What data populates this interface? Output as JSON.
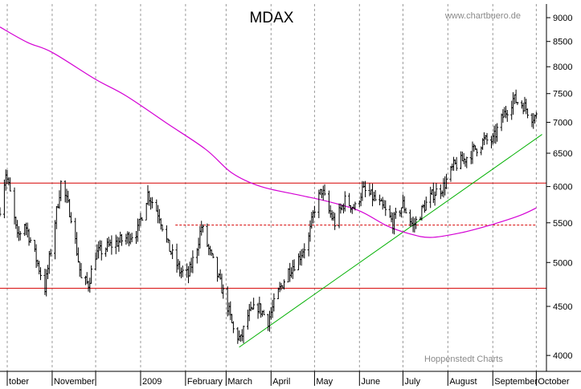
{
  "chart_data": {
    "type": "ohlc",
    "title": "MDAX",
    "source_top": "www.chartbuero.de",
    "source_bottom": "Hoppenstedt Charts",
    "xlabel": "",
    "ylabel": "",
    "y_scale": "log",
    "ylim": [
      3850,
      9300
    ],
    "y_ticks": [
      "4000",
      "4500",
      "5000",
      "5500",
      "6000",
      "6500",
      "7000",
      "7500",
      "8000",
      "8500",
      "9000"
    ],
    "x_range": [
      "2008-09-26",
      "2009-10-08"
    ],
    "x_ticks": [
      {
        "date": "2008-10-01",
        "label": "tober"
      },
      {
        "date": "2008-11-01",
        "label": "November"
      },
      {
        "date": "2008-12-01",
        "label": ""
      },
      {
        "date": "2009-01-01",
        "label": "2009"
      },
      {
        "date": "2009-02-01",
        "label": "February"
      },
      {
        "date": "2009-03-01",
        "label": "March"
      },
      {
        "date": "2009-04-01",
        "label": "April"
      },
      {
        "date": "2009-05-01",
        "label": "May"
      },
      {
        "date": "2009-06-01",
        "label": "June"
      },
      {
        "date": "2009-07-01",
        "label": "July"
      },
      {
        "date": "2009-08-01",
        "label": "August"
      },
      {
        "date": "2009-09-01",
        "label": "September"
      },
      {
        "date": "2009-10-01",
        "label": "October"
      }
    ],
    "grid": "vertical-dashed",
    "price_path": [
      [
        "2008-09-26",
        5700
      ],
      [
        "2008-09-30",
        6200
      ],
      [
        "2008-10-03",
        5900
      ],
      [
        "2008-10-08",
        5300
      ],
      [
        "2008-10-13",
        5500
      ],
      [
        "2008-10-20",
        5100
      ],
      [
        "2008-10-27",
        4700
      ],
      [
        "2008-10-31",
        5150
      ],
      [
        "2008-11-04",
        5650
      ],
      [
        "2008-11-07",
        6050
      ],
      [
        "2008-11-14",
        5600
      ],
      [
        "2008-11-21",
        4800
      ],
      [
        "2008-11-26",
        4750
      ],
      [
        "2008-12-01",
        5100
      ],
      [
        "2008-12-10",
        5200
      ],
      [
        "2008-12-22",
        5300
      ],
      [
        "2008-12-30",
        5400
      ],
      [
        "2009-01-06",
        5900
      ],
      [
        "2009-01-14",
        5600
      ],
      [
        "2009-01-20",
        5200
      ],
      [
        "2009-01-28",
        4900
      ],
      [
        "2009-02-03",
        4850
      ],
      [
        "2009-02-09",
        5200
      ],
      [
        "2009-02-12",
        5450
      ],
      [
        "2009-02-18",
        5100
      ],
      [
        "2009-02-24",
        4800
      ],
      [
        "2009-03-02",
        4500
      ],
      [
        "2009-03-06",
        4250
      ],
      [
        "2009-03-11",
        4150
      ],
      [
        "2009-03-16",
        4400
      ],
      [
        "2009-03-23",
        4500
      ],
      [
        "2009-03-30",
        4350
      ],
      [
        "2009-04-06",
        4650
      ],
      [
        "2009-04-13",
        4900
      ],
      [
        "2009-04-20",
        5050
      ],
      [
        "2009-04-27",
        5300
      ],
      [
        "2009-05-01",
        5700
      ],
      [
        "2009-05-06",
        5950
      ],
      [
        "2009-05-11",
        5650
      ],
      [
        "2009-05-15",
        5500
      ],
      [
        "2009-05-22",
        5800
      ],
      [
        "2009-05-29",
        5700
      ],
      [
        "2009-06-03",
        5950
      ],
      [
        "2009-06-10",
        5850
      ],
      [
        "2009-06-17",
        5700
      ],
      [
        "2009-06-24",
        5500
      ],
      [
        "2009-07-01",
        5750
      ],
      [
        "2009-07-08",
        5450
      ],
      [
        "2009-07-15",
        5700
      ],
      [
        "2009-07-22",
        5900
      ],
      [
        "2009-07-29",
        6000
      ],
      [
        "2009-08-05",
        6300
      ],
      [
        "2009-08-12",
        6400
      ],
      [
        "2009-08-19",
        6550
      ],
      [
        "2009-08-26",
        6700
      ],
      [
        "2009-09-01",
        6700
      ],
      [
        "2009-09-08",
        7100
      ],
      [
        "2009-09-15",
        7400
      ],
      [
        "2009-09-22",
        7300
      ],
      [
        "2009-09-28",
        7100
      ],
      [
        "2009-10-01",
        7100
      ]
    ],
    "series": [
      {
        "kind": "moving-average",
        "color": "#d400d4",
        "points": [
          [
            "2008-09-26",
            8800
          ],
          [
            "2008-10-15",
            8480
          ],
          [
            "2008-11-01",
            8280
          ],
          [
            "2008-12-01",
            7760
          ],
          [
            "2008-12-22",
            7460
          ],
          [
            "2009-01-20",
            6970
          ],
          [
            "2009-02-15",
            6560
          ],
          [
            "2009-03-05",
            6200
          ],
          [
            "2009-03-25",
            6000
          ],
          [
            "2009-04-20",
            5880
          ],
          [
            "2009-05-10",
            5790
          ],
          [
            "2009-06-01",
            5660
          ],
          [
            "2009-06-20",
            5460
          ],
          [
            "2009-07-05",
            5360
          ],
          [
            "2009-07-20",
            5310
          ],
          [
            "2009-08-10",
            5370
          ],
          [
            "2009-09-01",
            5480
          ],
          [
            "2009-09-20",
            5600
          ],
          [
            "2009-10-01",
            5700
          ]
        ]
      }
    ],
    "lines": [
      {
        "kind": "resistance",
        "color": "#d60000",
        "style": "solid",
        "value": 6050
      },
      {
        "kind": "support",
        "color": "#d60000",
        "style": "solid",
        "value": 4700
      },
      {
        "kind": "support",
        "color": "#d60000",
        "style": "dashed",
        "value": 5470,
        "from": "2009-01-25",
        "to": "2009-10-01"
      },
      {
        "kind": "trendline",
        "color": "#00b000",
        "style": "solid",
        "from": [
          "2009-03-10",
          4080
        ],
        "to": [
          "2009-10-05",
          6800
        ]
      }
    ]
  }
}
